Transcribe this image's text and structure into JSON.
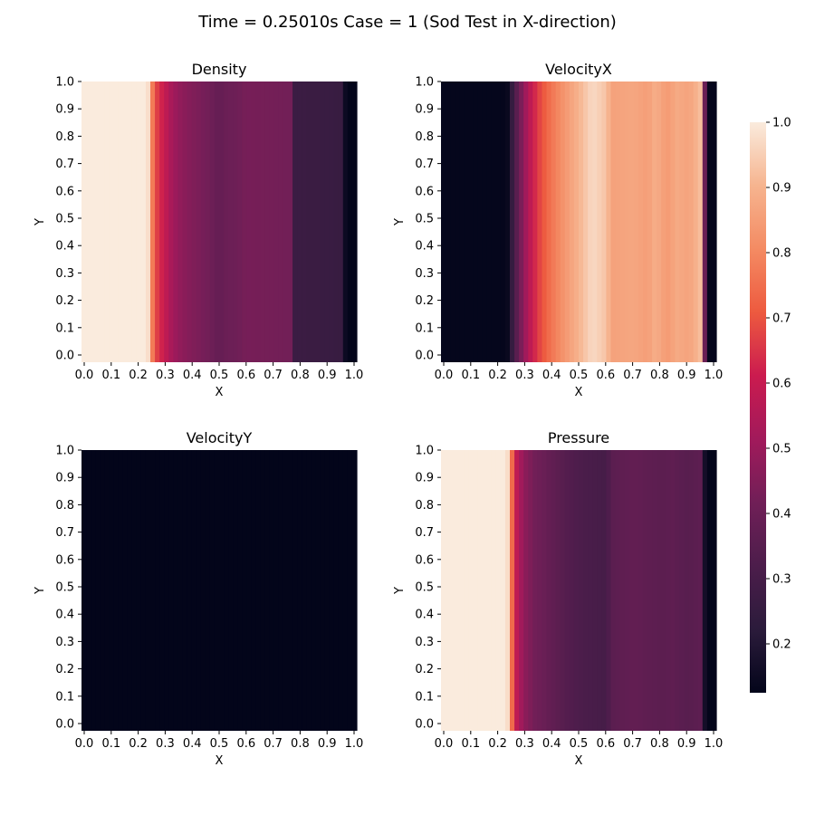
{
  "suptitle": "Time = 0.25010s  Case = 1 (Sod Test in X-direction)",
  "colormap": {
    "name": "rocket",
    "stops": [
      "#03051a",
      "#2b1b3b",
      "#4c1d4b",
      "#701f57",
      "#a11a5b",
      "#cb1b4f",
      "#ed5a3f",
      "#f48b63",
      "#f6b48f",
      "#faebdd"
    ]
  },
  "colorbar": {
    "ticks": [
      "1.0",
      "0.9",
      "0.8",
      "0.7",
      "0.6",
      "0.5",
      "0.4",
      "0.3",
      "0.2"
    ],
    "tick_values": [
      1.0,
      0.9,
      0.8,
      0.7,
      0.6,
      0.5,
      0.4,
      0.3,
      0.2
    ],
    "range": [
      0.125,
      1.0
    ]
  },
  "chart_data": [
    {
      "type": "heatmap",
      "title": "Density",
      "xlabel": "X",
      "ylabel": "Y",
      "xticks": [
        "0.0",
        "0.1",
        "0.2",
        "0.3",
        "0.4",
        "0.5",
        "0.6",
        "0.7",
        "0.8",
        "0.9",
        "1.0"
      ],
      "yticks": [
        "1.0",
        "0.9",
        "0.8",
        "0.7",
        "0.6",
        "0.5",
        "0.4",
        "0.3",
        "0.2",
        "0.1",
        "0.0"
      ],
      "profile_x": [
        0.0,
        0.24,
        0.255,
        0.27,
        0.3,
        0.33,
        0.36,
        0.4,
        0.46,
        0.5,
        0.52,
        0.56,
        0.6,
        0.76,
        0.775,
        0.95,
        0.96,
        1.0
      ],
      "profile_value": [
        1.0,
        1.0,
        0.8,
        0.68,
        0.6,
        0.52,
        0.48,
        0.45,
        0.42,
        0.38,
        0.4,
        0.41,
        0.43,
        0.42,
        0.27,
        0.26,
        0.125,
        0.125
      ]
    },
    {
      "type": "heatmap",
      "title": "VelocityX",
      "xlabel": "X",
      "ylabel": "Y",
      "xticks": [
        "0.0",
        "0.1",
        "0.2",
        "0.3",
        "0.4",
        "0.5",
        "0.6",
        "0.7",
        "0.8",
        "0.9",
        "1.0"
      ],
      "yticks": [
        "1.0",
        "0.9",
        "0.8",
        "0.7",
        "0.6",
        "0.5",
        "0.4",
        "0.3",
        "0.2",
        "0.1",
        "0.0"
      ],
      "profile_x": [
        0.0,
        0.24,
        0.27,
        0.3,
        0.33,
        0.36,
        0.4,
        0.44,
        0.5,
        0.55,
        0.6,
        0.62,
        0.7,
        0.75,
        0.78,
        0.82,
        0.86,
        0.9,
        0.93,
        0.955,
        0.96,
        1.0
      ],
      "profile_value": [
        0.13,
        0.13,
        0.33,
        0.48,
        0.6,
        0.68,
        0.76,
        0.82,
        0.9,
        0.97,
        0.93,
        0.86,
        0.87,
        0.85,
        0.89,
        0.84,
        0.88,
        0.86,
        0.9,
        0.94,
        0.13,
        0.13
      ]
    },
    {
      "type": "heatmap",
      "title": "VelocityY",
      "xlabel": "X",
      "ylabel": "Y",
      "xticks": [
        "0.0",
        "0.1",
        "0.2",
        "0.3",
        "0.4",
        "0.5",
        "0.6",
        "0.7",
        "0.8",
        "0.9",
        "1.0"
      ],
      "yticks": [
        "1.0",
        "0.9",
        "0.8",
        "0.7",
        "0.6",
        "0.5",
        "0.4",
        "0.3",
        "0.2",
        "0.1",
        "0.0"
      ],
      "profile_x": [
        0.0,
        1.0
      ],
      "profile_value": [
        0.125,
        0.125
      ]
    },
    {
      "type": "heatmap",
      "title": "Pressure",
      "xlabel": "X",
      "ylabel": "Y",
      "xticks": [
        "0.0",
        "0.1",
        "0.2",
        "0.3",
        "0.4",
        "0.5",
        "0.6",
        "0.7",
        "0.8",
        "0.9",
        "1.0"
      ],
      "yticks": [
        "1.0",
        "0.9",
        "0.8",
        "0.7",
        "0.6",
        "0.5",
        "0.4",
        "0.3",
        "0.2",
        "0.1",
        "0.0"
      ],
      "profile_x": [
        0.0,
        0.24,
        0.255,
        0.27,
        0.3,
        0.34,
        0.4,
        0.46,
        0.5,
        0.6,
        0.62,
        0.7,
        0.8,
        0.84,
        0.9,
        0.95,
        0.96,
        1.0
      ],
      "profile_value": [
        1.0,
        1.0,
        0.78,
        0.6,
        0.48,
        0.42,
        0.38,
        0.34,
        0.32,
        0.3,
        0.36,
        0.38,
        0.36,
        0.37,
        0.35,
        0.37,
        0.125,
        0.125
      ]
    }
  ]
}
